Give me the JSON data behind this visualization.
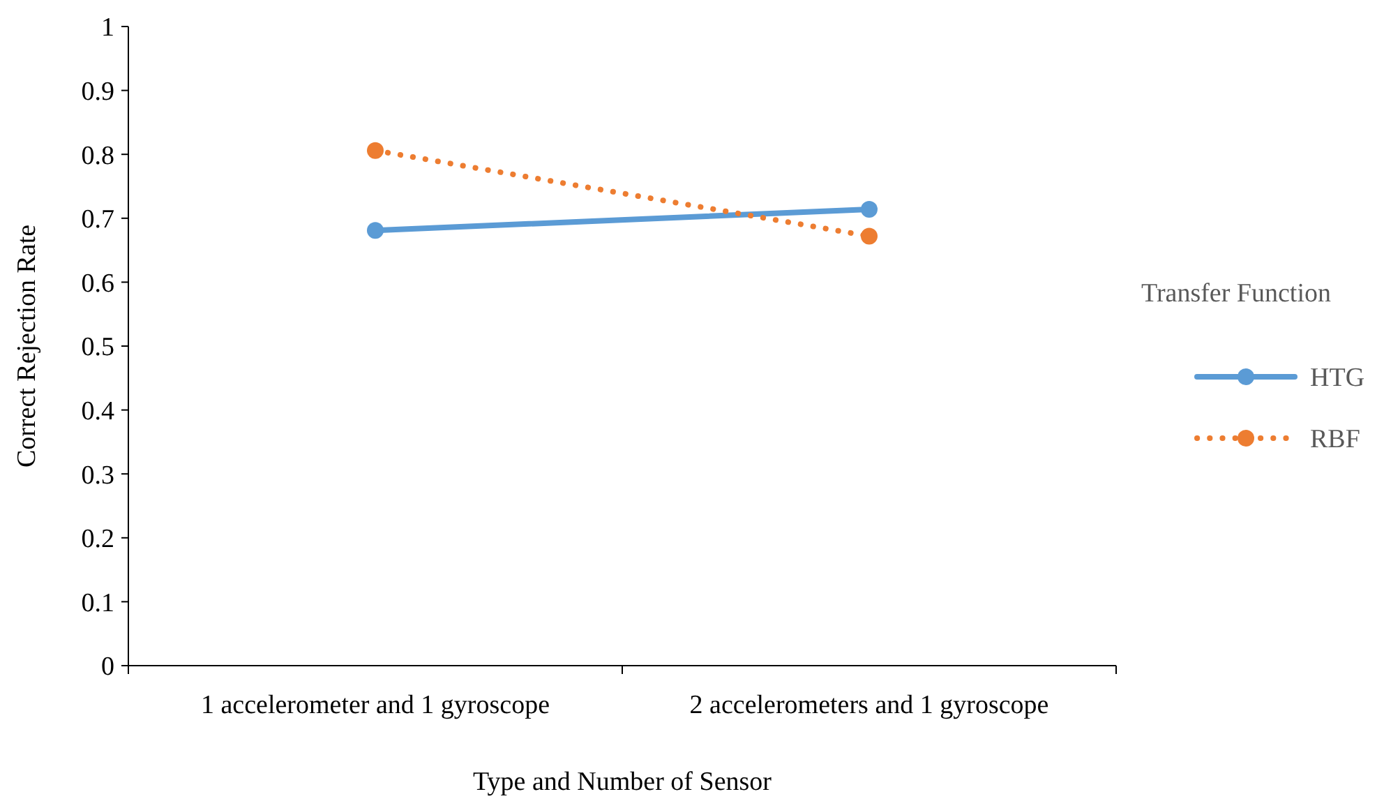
{
  "chart_data": {
    "type": "line",
    "xlabel": "Type and Number of Sensor",
    "ylabel": "Correct Rejection Rate",
    "legend_title": "Transfer Function",
    "categories": [
      "1 accelerometer and 1 gyroscope",
      "2 accelerometers and 1 gyroscope"
    ],
    "series": [
      {
        "name": "HTG",
        "color": "#5b9bd5",
        "values": [
          0.681,
          0.714
        ],
        "line_style": "solid"
      },
      {
        "name": "RBF",
        "color": "#ed7d31",
        "values": [
          0.806,
          0.672
        ],
        "line_style": "dotted"
      }
    ],
    "ylim": [
      0,
      1
    ],
    "yticks": [
      0,
      0.1,
      0.2,
      0.3,
      0.4,
      0.5,
      0.6,
      0.7,
      0.8,
      0.9,
      1
    ],
    "grid": false,
    "legend": "right",
    "marker": "circle"
  }
}
